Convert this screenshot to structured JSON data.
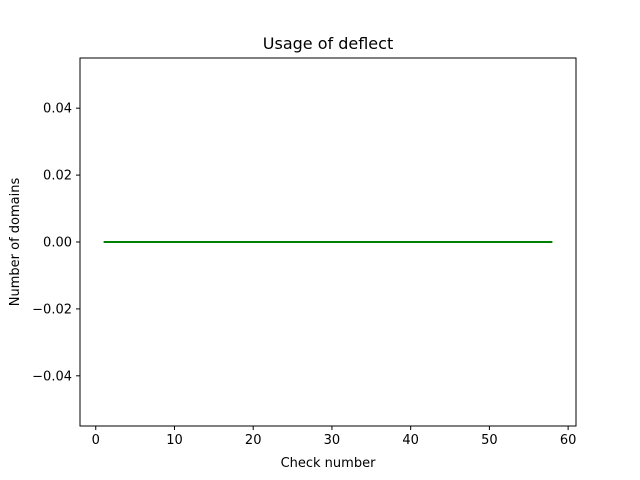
{
  "chart_data": {
    "type": "line",
    "title": "Usage of deflect",
    "xlabel": "Check number",
    "ylabel": "Number of domains",
    "xlim": [
      -2,
      61
    ],
    "ylim": [
      -0.055,
      0.055
    ],
    "xticks": [
      0,
      10,
      20,
      30,
      40,
      50,
      60
    ],
    "yticks": [
      -0.04,
      -0.02,
      0.0,
      0.02,
      0.04
    ],
    "xtick_labels": [
      "0",
      "10",
      "20",
      "30",
      "40",
      "50",
      "60"
    ],
    "ytick_labels": [
      "−0.04",
      "−0.02",
      "0.00",
      "0.02",
      "0.04"
    ],
    "grid": false,
    "series": [
      {
        "color": "#008000",
        "x": [
          1,
          58
        ],
        "y": [
          0,
          0
        ]
      }
    ]
  }
}
